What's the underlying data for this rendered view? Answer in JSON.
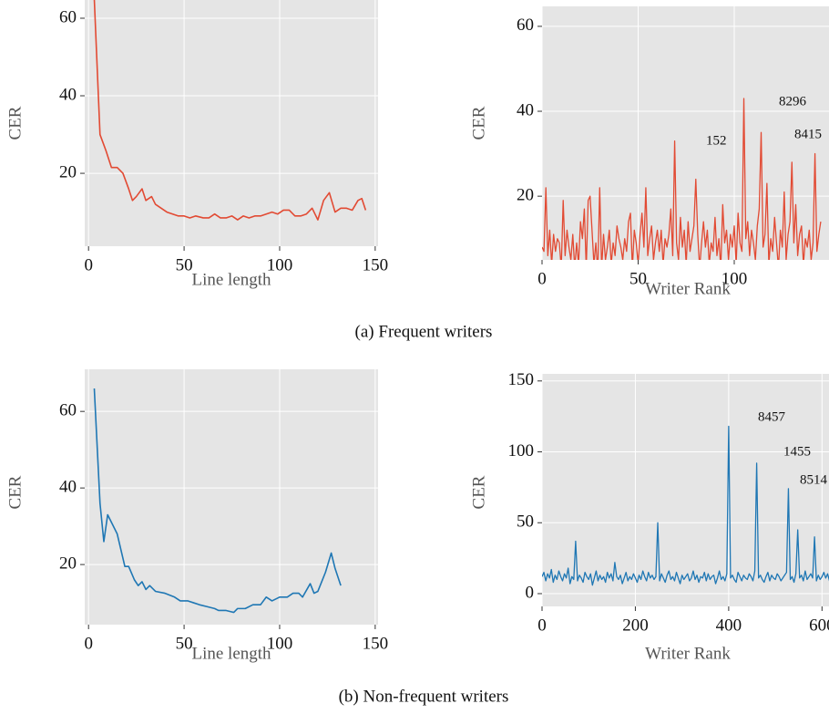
{
  "captions": [
    "(a) Frequent writers",
    "(b) Non-frequent writers"
  ],
  "chart_data": [
    {
      "type": "line",
      "xlabel": "Line length",
      "ylabel": "CER",
      "x": [
        3,
        6,
        9,
        12,
        15,
        18,
        21,
        23,
        25,
        28,
        30,
        33,
        35,
        38,
        41,
        44,
        47,
        50,
        53,
        56,
        60,
        63,
        66,
        69,
        72,
        75,
        78,
        81,
        84,
        87,
        90,
        93,
        96,
        99,
        102,
        105,
        108,
        111,
        114,
        117,
        120,
        123,
        126,
        129,
        132,
        135,
        138,
        141,
        143,
        145
      ],
      "series": [
        {
          "color": "#e24a33",
          "values": [
            65,
            30,
            26,
            21.5,
            21.5,
            20,
            16,
            13,
            14,
            16,
            13,
            14,
            12,
            11,
            10,
            9.5,
            9,
            9,
            8.5,
            9,
            8.5,
            8.5,
            9.5,
            8.5,
            8.5,
            9,
            8,
            9,
            8.5,
            9,
            9,
            9.5,
            10,
            9.5,
            10.5,
            10.5,
            9,
            9,
            9.5,
            11,
            8,
            13,
            15,
            10,
            11,
            11,
            10.5,
            13,
            13.5,
            10.5
          ]
        }
      ],
      "xlim": [
        -2,
        151.5
      ],
      "ylim": [
        1.2,
        64.7
      ],
      "xticks": [
        0,
        50,
        100,
        150
      ],
      "yticks": [
        20,
        40,
        60
      ],
      "grid": true
    },
    {
      "type": "line",
      "xlabel": "Writer Rank",
      "ylabel": "CER",
      "x": [
        0,
        1,
        2,
        3,
        4,
        5,
        6,
        7,
        8,
        9,
        10,
        11,
        12,
        13,
        14,
        15,
        16,
        17,
        18,
        19,
        20,
        21,
        22,
        23,
        24,
        25,
        26,
        27,
        28,
        29,
        30,
        31,
        32,
        33,
        34,
        35,
        36,
        37,
        38,
        39,
        40,
        41,
        42,
        43,
        44,
        45,
        46,
        47,
        48,
        49,
        50,
        51,
        52,
        53,
        54,
        55,
        56,
        57,
        58,
        59,
        60,
        61,
        62,
        63,
        64,
        65,
        66,
        67,
        68,
        69,
        70,
        71,
        72,
        73,
        74,
        75,
        76,
        77,
        78,
        79,
        80,
        81,
        82,
        83,
        84,
        85,
        86,
        87,
        88,
        89,
        90,
        91,
        92,
        93,
        94,
        95,
        96,
        97,
        98,
        99,
        100,
        101,
        102,
        103,
        104,
        105,
        106,
        107,
        108,
        109,
        110,
        111,
        112,
        113,
        114,
        115,
        116,
        117,
        118,
        119,
        120,
        121,
        122,
        123,
        124,
        125,
        126,
        127,
        128,
        129,
        130,
        131,
        132,
        133,
        134,
        135,
        136,
        137,
        138,
        139,
        140,
        141,
        142,
        143,
        144,
        145
      ],
      "series": [
        {
          "color": "#e24a33",
          "values": [
            8,
            7,
            22,
            6,
            12,
            4,
            11,
            7,
            10,
            9,
            3,
            19,
            6,
            12,
            8,
            5,
            11,
            3,
            9,
            4,
            14,
            10,
            17,
            3,
            19,
            20,
            12,
            4,
            9,
            2,
            22,
            3,
            11,
            5,
            8,
            12,
            4,
            9,
            6,
            13,
            10,
            8,
            5,
            10,
            7,
            14,
            16,
            3,
            12,
            9,
            4,
            11,
            16,
            8,
            22,
            6,
            10,
            13,
            5,
            9,
            12,
            7,
            12,
            4,
            10,
            8,
            11,
            17,
            6,
            33,
            9,
            5,
            15,
            8,
            12,
            4,
            14,
            7,
            10,
            13,
            24,
            11,
            3,
            9,
            14,
            8,
            12,
            4,
            9,
            7,
            15,
            6,
            10,
            3,
            18,
            9,
            12,
            5,
            11,
            8,
            13,
            4,
            16,
            9,
            7,
            43,
            10,
            14,
            6,
            12,
            9,
            5,
            13,
            17,
            35,
            8,
            11,
            23,
            4,
            10,
            7,
            15,
            9,
            3,
            12,
            8,
            21,
            5,
            11,
            14,
            28,
            9,
            18,
            6,
            11,
            13,
            4,
            10,
            8,
            12,
            5,
            9,
            30,
            7,
            11,
            14
          ]
        }
      ],
      "xlim": [
        0,
        149.3
      ],
      "ylim": [
        5,
        64.7
      ],
      "xticks": [
        0,
        50,
        100
      ],
      "yticks": [
        20,
        40,
        60
      ],
      "grid": true,
      "annotations": [
        "152",
        "8296",
        "8415"
      ]
    },
    {
      "type": "line",
      "xlabel": "Line length",
      "ylabel": "CER",
      "x": [
        3,
        6,
        8,
        10,
        12,
        15,
        19,
        21,
        24,
        26,
        28,
        30,
        32,
        35,
        40,
        45,
        48,
        52,
        55,
        58,
        62,
        66,
        68,
        72,
        76,
        78,
        82,
        86,
        90,
        93,
        96,
        100,
        104,
        107,
        110,
        112,
        116,
        118,
        120,
        124,
        127,
        129,
        132
      ],
      "series": [
        {
          "color": "#1f77b4",
          "values": [
            66,
            36,
            26,
            33,
            31,
            28,
            19.5,
            19.5,
            16,
            14.5,
            15.5,
            13.5,
            14.5,
            13,
            12.5,
            11.5,
            10.5,
            10.5,
            10,
            9.5,
            9,
            8.5,
            8,
            8,
            7.5,
            8.5,
            8.5,
            9.5,
            9.5,
            11.5,
            10.5,
            11.5,
            11.5,
            12.5,
            12.5,
            11.5,
            15,
            12.5,
            13,
            18,
            23,
            19,
            14.5
          ]
        }
      ],
      "xlim": [
        -2,
        151.5
      ],
      "ylim": [
        4.3,
        71
      ],
      "xticks": [
        0,
        50,
        100,
        150
      ],
      "yticks": [
        20,
        40,
        60
      ],
      "grid": true
    },
    {
      "type": "line",
      "xlabel": "Writer Rank",
      "ylabel": "CER",
      "x": [
        0,
        4,
        8,
        12,
        16,
        20,
        24,
        28,
        32,
        36,
        40,
        44,
        48,
        52,
        56,
        60,
        64,
        68,
        72,
        76,
        80,
        84,
        88,
        92,
        96,
        100,
        104,
        108,
        112,
        116,
        120,
        124,
        128,
        132,
        136,
        140,
        144,
        148,
        152,
        156,
        160,
        164,
        168,
        172,
        176,
        180,
        184,
        188,
        192,
        196,
        200,
        204,
        208,
        212,
        216,
        220,
        224,
        228,
        232,
        236,
        240,
        244,
        248,
        252,
        256,
        260,
        264,
        268,
        272,
        276,
        280,
        284,
        288,
        292,
        296,
        300,
        304,
        308,
        312,
        316,
        320,
        324,
        328,
        332,
        336,
        340,
        344,
        348,
        352,
        356,
        360,
        364,
        368,
        372,
        376,
        380,
        384,
        388,
        392,
        396,
        400,
        404,
        408,
        412,
        416,
        420,
        424,
        428,
        432,
        436,
        440,
        444,
        448,
        452,
        456,
        460,
        464,
        468,
        472,
        476,
        480,
        484,
        488,
        492,
        496,
        500,
        504,
        508,
        512,
        516,
        520,
        524,
        528,
        532,
        536,
        540,
        544,
        548,
        552,
        556,
        560,
        564,
        568,
        572,
        576,
        580,
        584,
        588,
        592,
        596,
        600,
        604,
        608,
        612,
        616,
        620
      ],
      "series": [
        {
          "color": "#1f77b4",
          "values": [
            12,
            15,
            9,
            14,
            11,
            17,
            8,
            13,
            10,
            16,
            12,
            9,
            14,
            11,
            18,
            7,
            12,
            10,
            37,
            9,
            13,
            11,
            8,
            15,
            12,
            10,
            14,
            6,
            11,
            16,
            9,
            13,
            10,
            12,
            8,
            15,
            11,
            14,
            9,
            22,
            12,
            10,
            13,
            7,
            11,
            15,
            9,
            12,
            10,
            14,
            11,
            8,
            13,
            10,
            16,
            12,
            9,
            15,
            11,
            13,
            10,
            12,
            50,
            9,
            14,
            11,
            8,
            13,
            16,
            10,
            12,
            9,
            15,
            11,
            7,
            13,
            10,
            12,
            14,
            9,
            11,
            16,
            10,
            13,
            8,
            12,
            11,
            15,
            9,
            14,
            10,
            12,
            13,
            7,
            11,
            16,
            10,
            12,
            9,
            14,
            118,
            11,
            13,
            10,
            8,
            15,
            12,
            9,
            13,
            11,
            10,
            14,
            12,
            9,
            16,
            92,
            11,
            13,
            10,
            8,
            12,
            15,
            9,
            13,
            11,
            10,
            14,
            12,
            9,
            11,
            13,
            15,
            74,
            10,
            12,
            8,
            14,
            45,
            11,
            13,
            9,
            16,
            10,
            12,
            14,
            11,
            40,
            9,
            13,
            10,
            12,
            15,
            11,
            14,
            9,
            12
          ]
        }
      ],
      "xlim": [
        0,
        615
      ],
      "ylim": [
        -9,
        155
      ],
      "xticks": [
        0,
        200,
        400,
        600
      ],
      "yticks": [
        0,
        50,
        100,
        150
      ],
      "grid": true,
      "annotations": [
        "8457",
        "1455",
        "8514"
      ]
    }
  ]
}
